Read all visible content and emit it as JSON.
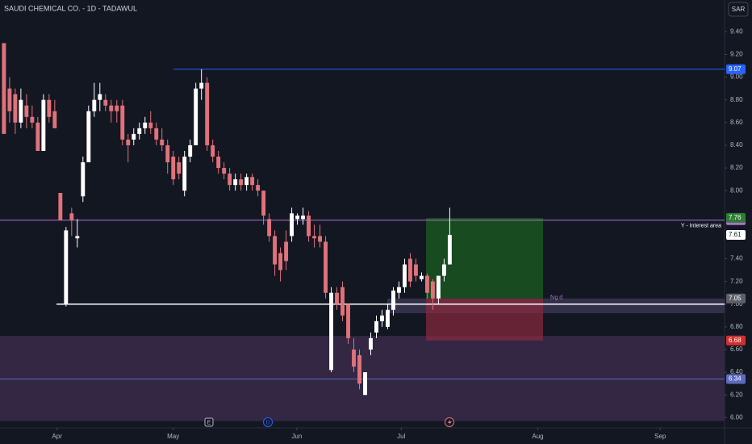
{
  "chart_data": {
    "type": "candlestick",
    "title": "SAUDI CHEMICAL CO. - 1D - TADAWUL",
    "currency": "SAR",
    "categories": [
      null,
      null,
      null,
      null,
      null,
      null,
      null,
      null,
      null,
      null,
      null,
      null,
      null,
      null,
      null,
      null,
      null,
      null,
      null,
      null,
      null,
      null,
      null,
      null,
      null,
      null,
      null,
      null,
      null,
      null,
      null,
      null,
      null,
      null,
      null,
      null,
      null,
      null,
      null,
      null,
      null,
      null,
      null,
      null,
      null,
      null,
      null,
      null,
      null,
      null,
      null,
      null,
      null,
      null,
      null,
      null,
      null,
      null,
      null,
      null,
      null,
      null,
      null,
      null,
      null,
      null,
      null,
      null,
      null,
      null,
      null,
      null,
      null,
      null,
      null,
      null,
      null,
      null,
      null,
      null
    ],
    "open": [
      9.3,
      8.9,
      8.85,
      8.6,
      8.75,
      8.65,
      8.6,
      8.35,
      8.8,
      8.7,
      7.98,
      7.0,
      7.8,
      7.58,
      7.95,
      8.25,
      8.7,
      8.8,
      8.8,
      8.75,
      8.75,
      8.75,
      8.45,
      8.45,
      8.5,
      8.55,
      8.6,
      8.55,
      8.45,
      8.4,
      8.3,
      8.25,
      8.0,
      8.3,
      8.4,
      8.9,
      8.95,
      8.4,
      8.3,
      8.2,
      8.15,
      8.05,
      8.1,
      8.05,
      8.12,
      8.05,
      8.0,
      7.75,
      7.6,
      7.45,
      7.55,
      7.6,
      7.75,
      7.75,
      7.78,
      7.6,
      7.6,
      7.55,
      6.42,
      7.1,
      7.15,
      7.0,
      6.6,
      6.55,
      6.2,
      6.6,
      6.75,
      6.85,
      6.8,
      6.95,
      7.1,
      7.15,
      7.4,
      7.35,
      7.22,
      7.25,
      7.2,
      7.05,
      7.25,
      7.35
    ],
    "high": [
      9.3,
      9.0,
      8.9,
      8.9,
      8.85,
      8.75,
      8.65,
      8.85,
      8.85,
      8.8,
      7.98,
      7.68,
      7.85,
      7.75,
      8.3,
      8.75,
      8.95,
      8.95,
      8.85,
      8.8,
      8.8,
      8.8,
      8.5,
      8.55,
      8.6,
      8.65,
      8.7,
      8.6,
      8.55,
      8.45,
      8.35,
      8.3,
      8.35,
      8.45,
      8.95,
      9.07,
      9.0,
      8.45,
      8.35,
      8.25,
      8.2,
      8.15,
      8.15,
      8.15,
      8.15,
      8.1,
      8.0,
      7.8,
      7.65,
      7.5,
      7.65,
      7.85,
      7.8,
      7.85,
      7.82,
      7.7,
      7.7,
      7.6,
      7.15,
      7.15,
      7.2,
      7.0,
      6.7,
      6.6,
      6.4,
      6.75,
      6.9,
      6.95,
      7.0,
      7.15,
      7.2,
      7.4,
      7.45,
      7.4,
      7.28,
      7.27,
      7.22,
      7.25,
      7.4,
      7.85
    ],
    "low": [
      8.5,
      8.6,
      8.5,
      8.55,
      8.55,
      8.55,
      8.35,
      8.35,
      8.6,
      8.55,
      7.74,
      6.98,
      7.6,
      7.5,
      7.9,
      8.25,
      8.65,
      8.7,
      8.7,
      8.6,
      8.6,
      8.4,
      8.25,
      8.4,
      8.45,
      8.5,
      8.5,
      8.4,
      8.35,
      8.15,
      8.05,
      8.1,
      7.95,
      8.25,
      8.4,
      8.8,
      8.35,
      8.25,
      8.15,
      8.1,
      8.0,
      8.0,
      8.0,
      8.0,
      8.0,
      7.95,
      7.7,
      7.55,
      7.25,
      7.2,
      7.3,
      7.55,
      7.7,
      7.7,
      7.55,
      7.5,
      7.5,
      7.05,
      6.4,
      6.95,
      6.85,
      6.65,
      6.4,
      6.25,
      6.2,
      6.55,
      6.7,
      6.8,
      6.78,
      6.9,
      7.05,
      7.1,
      7.15,
      7.2,
      7.2,
      7.05,
      6.95,
      7.0,
      7.2,
      7.35
    ],
    "close": [
      8.5,
      8.7,
      8.6,
      8.8,
      8.65,
      8.6,
      8.35,
      8.8,
      8.65,
      8.55,
      7.74,
      7.65,
      7.74,
      7.6,
      8.25,
      8.7,
      8.8,
      8.85,
      8.75,
      8.7,
      8.7,
      8.45,
      8.4,
      8.5,
      8.55,
      8.6,
      8.55,
      8.45,
      8.4,
      8.25,
      8.1,
      8.15,
      8.3,
      8.4,
      8.9,
      8.95,
      8.4,
      8.3,
      8.2,
      8.15,
      8.05,
      8.1,
      8.05,
      8.12,
      8.05,
      8.0,
      7.78,
      7.6,
      7.35,
      7.3,
      7.38,
      7.8,
      7.78,
      7.78,
      7.6,
      7.58,
      7.55,
      7.1,
      7.1,
      7.0,
      6.9,
      6.7,
      6.45,
      6.3,
      6.4,
      6.7,
      6.85,
      6.9,
      6.95,
      7.12,
      7.15,
      7.35,
      7.2,
      7.25,
      7.25,
      7.1,
      7.05,
      7.25,
      7.35,
      7.61
    ],
    "up_color": "#ffffff",
    "down_color": "#e0727a",
    "xlim": [
      -0.7,
      127.7
    ],
    "xticks": [
      {
        "value": 9.4,
        "label": "Apr"
      },
      {
        "value": 30.0,
        "label": "May"
      },
      {
        "value": 51.9,
        "label": "Jun"
      },
      {
        "value": 70.4,
        "label": "Jul"
      },
      {
        "value": 94.6,
        "label": "Aug"
      },
      {
        "value": 116.3,
        "label": "Sep"
      }
    ],
    "ylim": [
      5.91,
      9.68
    ],
    "yticks": [
      {
        "value": 9.4,
        "label": "9.40"
      },
      {
        "value": 9.2,
        "label": "9.20"
      },
      {
        "value": 9.0,
        "label": "9.00"
      },
      {
        "value": 8.8,
        "label": "8.80"
      },
      {
        "value": 8.6,
        "label": "8.60"
      },
      {
        "value": 8.4,
        "label": "8.40"
      },
      {
        "value": 8.2,
        "label": "8.20"
      },
      {
        "value": 8.0,
        "label": "8.00"
      },
      {
        "value": 7.4,
        "label": "7.40"
      },
      {
        "value": 7.2,
        "label": "7.20"
      },
      {
        "value": 7.0,
        "label": "7.00"
      },
      {
        "value": 6.8,
        "label": "6.80"
      },
      {
        "value": 6.6,
        "label": "6.60"
      },
      {
        "value": 6.4,
        "label": "6.40"
      },
      {
        "value": 6.2,
        "label": "6.20"
      },
      {
        "value": 6.0,
        "label": "6.00"
      }
    ],
    "horizontal_lines": [
      {
        "value": 9.07,
        "color": "#2962ff"
      },
      {
        "value": 7.74,
        "color": "#b26fd6",
        "label": "Y - Interest area"
      },
      {
        "value": 7.0,
        "color": "#ffffff"
      },
      {
        "value": 6.34,
        "color": "#5c6bc0"
      }
    ],
    "zones": [
      {
        "from": 5.97,
        "to": 6.72,
        "color": "#3a2a4a"
      },
      {
        "from": 6.92,
        "to": 7.05,
        "color": "#3a3550",
        "label": "fvg d"
      }
    ],
    "position": {
      "entry": 7.05,
      "target": 7.76,
      "stop": 6.68
    },
    "events": [
      "E",
      "D"
    ]
  }
}
